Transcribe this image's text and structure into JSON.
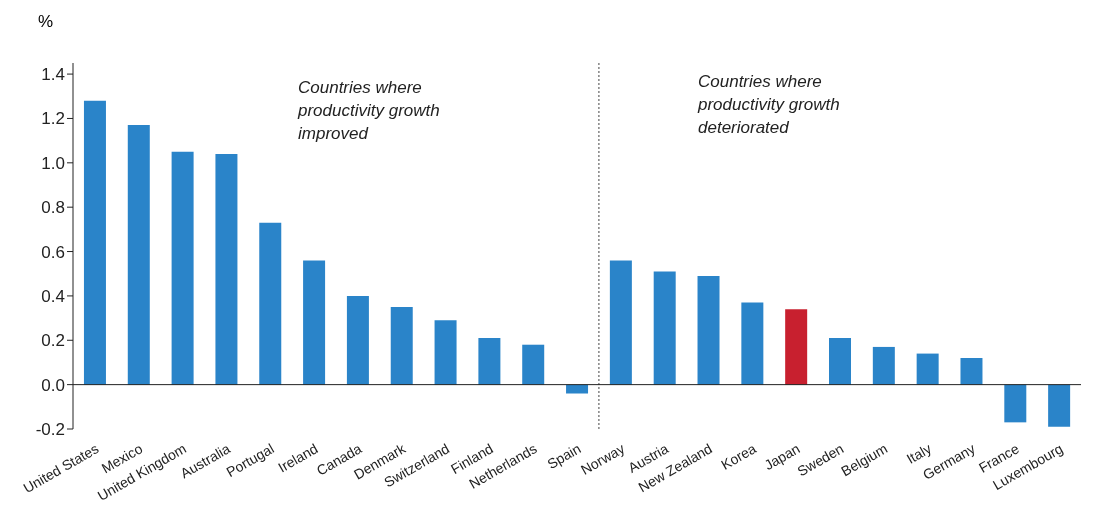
{
  "chart_data": {
    "type": "bar",
    "ylabel": "%",
    "categories": [
      "United States",
      "Mexico",
      "United Kingdom",
      "Australia",
      "Portugal",
      "Ireland",
      "Canada",
      "Denmark",
      "Switzerland",
      "Finland",
      "Netherlands",
      "Spain",
      "Norway",
      "Austria",
      "New Zealand",
      "Korea",
      "Japan",
      "Sweden",
      "Belgium",
      "Italy",
      "Germany",
      "France",
      "Luxembourg"
    ],
    "values": [
      1.28,
      1.17,
      1.05,
      1.04,
      0.73,
      0.56,
      0.4,
      0.35,
      0.29,
      0.21,
      0.18,
      -0.04,
      0.56,
      0.51,
      0.49,
      0.37,
      0.34,
      0.21,
      0.17,
      0.14,
      0.12,
      -0.17,
      -0.19
    ],
    "colors": [
      "#2a84c9",
      "#2a84c9",
      "#2a84c9",
      "#2a84c9",
      "#2a84c9",
      "#2a84c9",
      "#2a84c9",
      "#2a84c9",
      "#2a84c9",
      "#2a84c9",
      "#2a84c9",
      "#2a84c9",
      "#2a84c9",
      "#2a84c9",
      "#2a84c9",
      "#2a84c9",
      "#c8202f",
      "#2a84c9",
      "#2a84c9",
      "#2a84c9",
      "#2a84c9",
      "#2a84c9",
      "#2a84c9"
    ],
    "ylim": [
      -0.2,
      1.45
    ],
    "yticks": [
      {
        "value": -0.2,
        "label": "-0.2"
      },
      {
        "value": 0,
        "label": "0.0"
      },
      {
        "value": 0.2,
        "label": "0.2"
      },
      {
        "value": 0.4,
        "label": "0.4"
      },
      {
        "value": 0.6,
        "label": "0.6"
      },
      {
        "value": 0.8,
        "label": "0.8"
      },
      {
        "value": 1,
        "label": "1.0"
      },
      {
        "value": 1.2,
        "label": "1.2"
      },
      {
        "value": 1.4,
        "label": "1.4"
      }
    ],
    "ref_lines": [
      {
        "axis": "x",
        "value": "Spain",
        "line_style": "dotted",
        "color": "#444444"
      },
      {
        "axis": "y",
        "value": 0,
        "line_style": "solid",
        "color": "#222222"
      }
    ],
    "annotations": [
      "Countries where productivity growth improved",
      "Countries where productivity growth deteriorated"
    ]
  }
}
